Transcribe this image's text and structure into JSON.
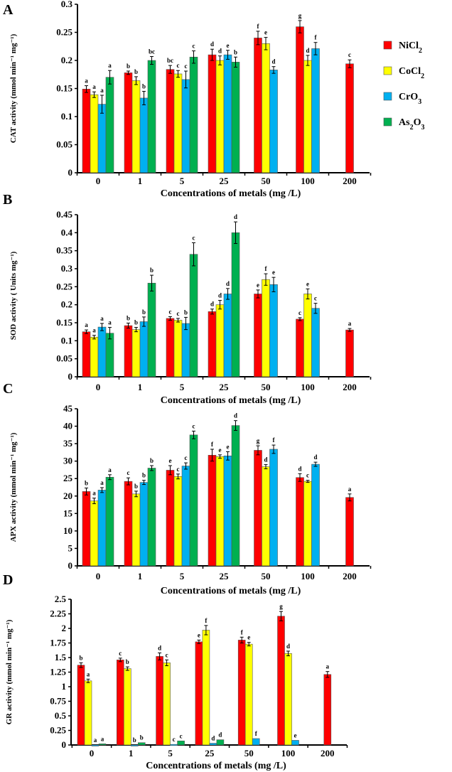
{
  "chart_data": [
    {
      "type": "bar",
      "panel": "A",
      "title": "",
      "xlabel": "Concentrations of metals (mg /L)",
      "ylabel": "CAT activity (mmol min⁻¹ mg⁻¹)",
      "ylim": [
        0,
        0.3
      ],
      "ystep": 0.05,
      "ytick_labels": [
        "0",
        "0.05",
        "0.1",
        "0.15",
        "0.2",
        "0.25",
        "0.3"
      ],
      "categories": [
        "0",
        "1",
        "5",
        "25",
        "50",
        "100",
        "200"
      ],
      "series": [
        {
          "name": "NiCl2",
          "values": [
            0.149,
            0.178,
            0.184,
            0.21,
            0.24,
            0.26,
            0.194
          ],
          "errors": [
            0.006,
            0.003,
            0.007,
            0.01,
            0.012,
            0.011,
            0.007
          ],
          "letters": [
            "a",
            "b",
            "bc",
            "d",
            "f",
            "g",
            "c"
          ]
        },
        {
          "name": "CoCl2",
          "values": [
            0.139,
            0.164,
            0.176,
            0.2,
            0.23,
            0.2,
            null
          ],
          "errors": [
            0.005,
            0.007,
            0.006,
            0.008,
            0.011,
            0.009,
            null
          ],
          "letters": [
            "a",
            "b",
            "c",
            "d",
            "e",
            "d",
            null
          ]
        },
        {
          "name": "CrO3",
          "values": [
            0.122,
            0.133,
            0.166,
            0.21,
            0.183,
            0.221,
            null
          ],
          "errors": [
            0.016,
            0.012,
            0.015,
            0.008,
            0.006,
            0.011,
            null
          ],
          "letters": [
            "a",
            "b",
            "c",
            "e",
            "d",
            "f",
            null
          ]
        },
        {
          "name": "As2O3",
          "values": [
            0.17,
            0.2,
            0.206,
            0.197,
            null,
            null,
            null
          ],
          "errors": [
            0.012,
            0.007,
            0.011,
            0.009,
            null,
            null,
            null
          ],
          "letters": [
            "a",
            "bc",
            "c",
            "b",
            null,
            null,
            null
          ]
        }
      ]
    },
    {
      "type": "bar",
      "panel": "B",
      "xlabel": "Concentrations of metals (mg /L)",
      "ylabel": "SOD activity ( Units mg⁻¹)",
      "ylim": [
        0,
        0.45
      ],
      "ystep": 0.05,
      "ytick_labels": [
        "0",
        "0.05",
        "0.1",
        "0.15",
        "0.2",
        "0.25",
        "0.3",
        "0.35",
        "0.4",
        "0.45"
      ],
      "categories": [
        "0",
        "1",
        "5",
        "25",
        "50",
        "100",
        "200"
      ],
      "series": [
        {
          "name": "NiCl2",
          "values": [
            0.125,
            0.142,
            0.162,
            0.181,
            0.23,
            0.16,
            0.13
          ],
          "errors": [
            0.005,
            0.007,
            0.005,
            0.007,
            0.011,
            0.004,
            0.004
          ],
          "letters": [
            "a",
            "b",
            "c",
            "d",
            "e",
            "c",
            "a"
          ]
        },
        {
          "name": "CoCl2",
          "values": [
            0.11,
            0.131,
            0.157,
            0.2,
            0.27,
            0.23,
            null
          ],
          "errors": [
            0.005,
            0.006,
            0.005,
            0.012,
            0.016,
            0.014,
            null
          ],
          "letters": [
            "a",
            "b",
            "c",
            "d",
            "f",
            "e",
            null
          ]
        },
        {
          "name": "CrO3",
          "values": [
            0.138,
            0.153,
            0.148,
            0.23,
            0.256,
            0.19,
            null
          ],
          "errors": [
            0.01,
            0.013,
            0.017,
            0.015,
            0.02,
            0.014,
            null
          ],
          "letters": [
            "a",
            "b",
            "b",
            "d",
            "e",
            "c",
            null
          ]
        },
        {
          "name": "As2O3",
          "values": [
            0.121,
            0.26,
            0.34,
            0.4,
            null,
            null,
            null
          ],
          "errors": [
            0.016,
            0.022,
            0.032,
            0.03,
            null,
            null,
            null
          ],
          "letters": [
            "a",
            "b",
            "c",
            "d",
            null,
            null,
            null
          ]
        }
      ]
    },
    {
      "type": "bar",
      "panel": "C",
      "xlabel": "Concentrations of metals (mg /L)",
      "ylabel": "APX activity (mmol min⁻¹ mg⁻¹)",
      "ylim": [
        0,
        45
      ],
      "ystep": 5,
      "ytick_labels": [
        "0",
        "5",
        "10",
        "15",
        "20",
        "25",
        "30",
        "35",
        "40",
        "45"
      ],
      "categories": [
        "0",
        "1",
        "5",
        "25",
        "50",
        "100",
        "200"
      ],
      "series": [
        {
          "name": "NiCl2",
          "values": [
            21.3,
            24.2,
            27.4,
            31.7,
            33.1,
            25.3,
            19.6
          ],
          "errors": [
            1.0,
            1.0,
            1.3,
            1.7,
            1.3,
            1.1,
            1.0
          ],
          "letters": [
            "b",
            "c",
            "e",
            "f",
            "g",
            "d",
            "a"
          ]
        },
        {
          "name": "CoCl2",
          "values": [
            18.6,
            20.6,
            25.6,
            31.3,
            28.4,
            24.2,
            null
          ],
          "errors": [
            0.8,
            0.8,
            0.7,
            0.5,
            0.6,
            0.3,
            null
          ],
          "letters": [
            "a",
            "b",
            "c",
            "e",
            "d",
            "c",
            null
          ]
        },
        {
          "name": "CrO3",
          "values": [
            21.7,
            23.9,
            28.6,
            31.5,
            33.4,
            29.1,
            null
          ],
          "errors": [
            0.7,
            0.6,
            0.9,
            1.2,
            1.2,
            0.6,
            null
          ],
          "letters": [
            "a",
            "b",
            "c",
            "e",
            "f",
            "d",
            null
          ]
        },
        {
          "name": "As2O3",
          "values": [
            25.4,
            28.0,
            37.5,
            40.2,
            null,
            null,
            null
          ],
          "errors": [
            0.7,
            0.7,
            1.1,
            1.4,
            null,
            null,
            null
          ],
          "letters": [
            "a",
            "b",
            "c",
            "d",
            null,
            null,
            null
          ]
        }
      ]
    },
    {
      "type": "bar",
      "panel": "D",
      "xlabel": "Concentrations of metals (mg /L)",
      "ylabel": "GR activity (mmol min⁻¹ mg⁻¹)",
      "ylim": [
        0,
        2.5
      ],
      "ystep": 0.25,
      "ytick_labels": [
        "0",
        "0.25",
        "0.5",
        "0.75",
        "1",
        "1.25",
        "1.5",
        "1.75",
        "2",
        "2.25",
        "2.5"
      ],
      "categories": [
        "0",
        "1",
        "5",
        "25",
        "50",
        "100",
        "200"
      ],
      "series": [
        {
          "name": "NiCl2",
          "values": [
            1.37,
            1.46,
            1.52,
            1.77,
            1.8,
            2.21,
            1.21
          ],
          "errors": [
            0.04,
            0.03,
            0.06,
            0.03,
            0.05,
            0.08,
            0.05
          ],
          "letters": [
            "b",
            "c",
            "d",
            "e",
            "f",
            "g",
            "a"
          ]
        },
        {
          "name": "CoCl2",
          "values": [
            1.1,
            1.31,
            1.41,
            1.97,
            1.73,
            1.57,
            null
          ],
          "errors": [
            0.03,
            0.03,
            0.05,
            0.08,
            0.03,
            0.04,
            null
          ],
          "letters": [
            "a",
            "b",
            "c",
            "f",
            "e",
            "d",
            null
          ]
        },
        {
          "name": "CrO3",
          "values": [
            0.0,
            0.0,
            0.01,
            0.03,
            0.11,
            0.08,
            null
          ],
          "errors": [
            0,
            0,
            0,
            0,
            0,
            0,
            null
          ],
          "letters": [
            "a",
            "b",
            "c",
            "d",
            "f",
            "e",
            null
          ]
        },
        {
          "name": "As2O3",
          "values": [
            0.02,
            0.04,
            0.07,
            0.09,
            null,
            null,
            null
          ],
          "errors": [
            0,
            0,
            0,
            0,
            null,
            null,
            null
          ],
          "letters": [
            "a",
            "b",
            "c",
            "d",
            null,
            null,
            null
          ]
        }
      ]
    }
  ],
  "legend": {
    "position": "right",
    "items": [
      {
        "label": "NiCl",
        "sub": "2",
        "color": "#ff0000"
      },
      {
        "label": "CoCl",
        "sub": "2",
        "color": "#ffff00"
      },
      {
        "label": "CrO",
        "sub": "3",
        "color": "#00b0f0"
      },
      {
        "label": "As",
        "sub": "2",
        "label2": "O",
        "sub2": "3",
        "color": "#00b050"
      }
    ]
  },
  "series_colors": [
    "#ff0000",
    "#ffff00",
    "#00b0f0",
    "#00b050"
  ]
}
